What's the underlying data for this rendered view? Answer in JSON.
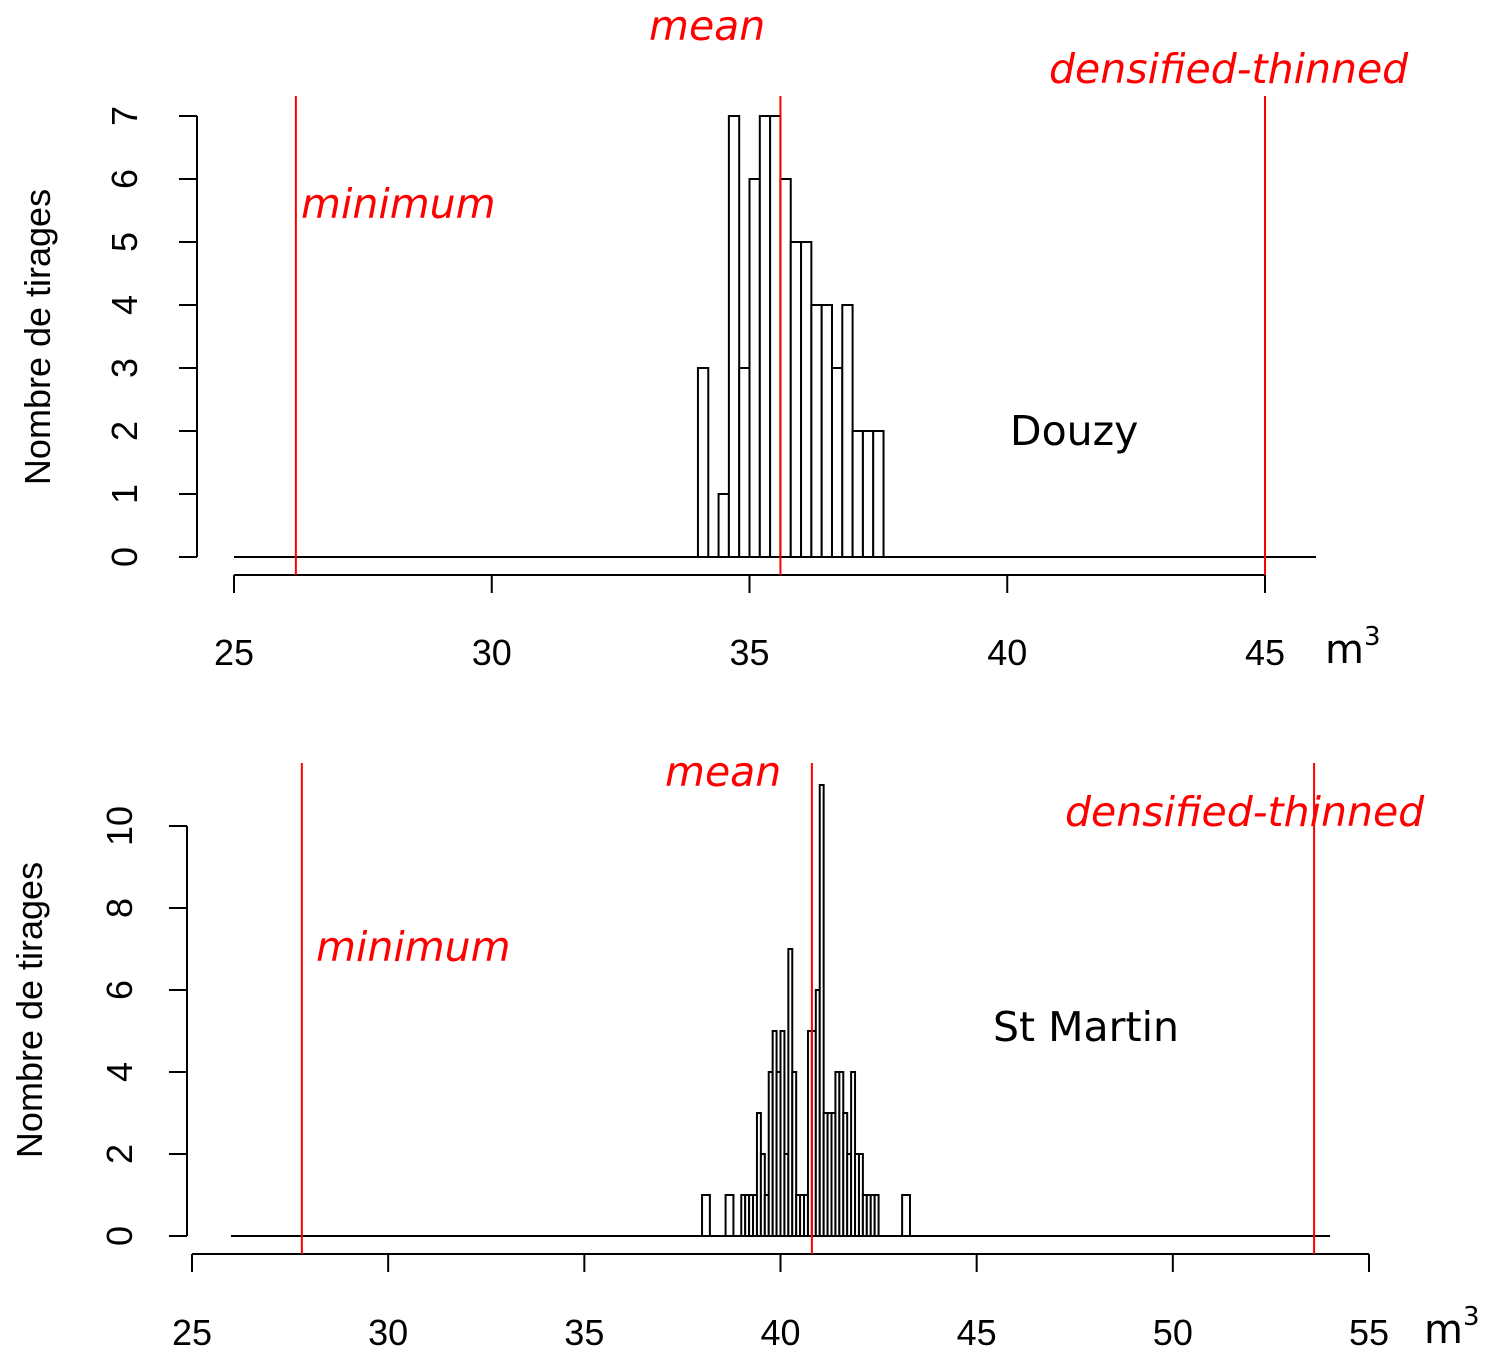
{
  "chart_data": [
    {
      "type": "bar",
      "subtype": "histogram",
      "site": "Douzy",
      "ylabel": "Nombre de tirages",
      "unit": "m",
      "unit_superscript": "3",
      "xlim": [
        25,
        46
      ],
      "ylim": [
        0,
        7
      ],
      "xticks": [
        25,
        30,
        35,
        40,
        45
      ],
      "yticks": [
        0,
        1,
        2,
        3,
        4,
        5,
        6,
        7
      ],
      "bins": [
        {
          "x0": 34.0,
          "x1": 34.2,
          "count": 3
        },
        {
          "x0": 34.2,
          "x1": 34.4,
          "count": 0
        },
        {
          "x0": 34.4,
          "x1": 34.6,
          "count": 1
        },
        {
          "x0": 34.6,
          "x1": 34.8,
          "count": 7
        },
        {
          "x0": 34.8,
          "x1": 35.0,
          "count": 3
        },
        {
          "x0": 35.0,
          "x1": 35.2,
          "count": 6
        },
        {
          "x0": 35.2,
          "x1": 35.4,
          "count": 7
        },
        {
          "x0": 35.4,
          "x1": 35.6,
          "count": 7
        },
        {
          "x0": 35.6,
          "x1": 35.8,
          "count": 6
        },
        {
          "x0": 35.8,
          "x1": 36.0,
          "count": 5
        },
        {
          "x0": 36.0,
          "x1": 36.2,
          "count": 5
        },
        {
          "x0": 36.2,
          "x1": 36.4,
          "count": 4
        },
        {
          "x0": 36.4,
          "x1": 36.6,
          "count": 4
        },
        {
          "x0": 36.6,
          "x1": 36.8,
          "count": 3
        },
        {
          "x0": 36.8,
          "x1": 37.0,
          "count": 4
        },
        {
          "x0": 37.0,
          "x1": 37.2,
          "count": 2
        },
        {
          "x0": 37.2,
          "x1": 37.4,
          "count": 2
        },
        {
          "x0": 37.4,
          "x1": 37.6,
          "count": 2
        }
      ],
      "reference_lines": [
        {
          "name": "minimum",
          "x": 26.2
        },
        {
          "name": "mean",
          "x": 35.6
        },
        {
          "name": "densified-thinned",
          "x": 45.0
        }
      ],
      "line_color": "#ff0000"
    },
    {
      "type": "bar",
      "subtype": "histogram",
      "site": "St Martin",
      "ylabel": "Nombre de tirages",
      "unit": "m",
      "unit_superscript": "3",
      "xlim": [
        25,
        55
      ],
      "ylim": [
        0,
        11
      ],
      "xticks": [
        25,
        30,
        35,
        40,
        45,
        50,
        55
      ],
      "yticks": [
        0,
        2,
        4,
        6,
        8,
        10
      ],
      "bins": [
        {
          "x0": 38.0,
          "x1": 38.2,
          "count": 1
        },
        {
          "x0": 38.6,
          "x1": 38.8,
          "count": 1
        },
        {
          "x0": 39.0,
          "x1": 39.1,
          "count": 1
        },
        {
          "x0": 39.1,
          "x1": 39.2,
          "count": 1
        },
        {
          "x0": 39.2,
          "x1": 39.3,
          "count": 1
        },
        {
          "x0": 39.3,
          "x1": 39.4,
          "count": 1
        },
        {
          "x0": 39.4,
          "x1": 39.5,
          "count": 3
        },
        {
          "x0": 39.5,
          "x1": 39.6,
          "count": 2
        },
        {
          "x0": 39.6,
          "x1": 39.7,
          "count": 1
        },
        {
          "x0": 39.7,
          "x1": 39.8,
          "count": 4
        },
        {
          "x0": 39.8,
          "x1": 39.9,
          "count": 5
        },
        {
          "x0": 39.9,
          "x1": 40.0,
          "count": 4
        },
        {
          "x0": 40.0,
          "x1": 40.1,
          "count": 5
        },
        {
          "x0": 40.1,
          "x1": 40.2,
          "count": 2
        },
        {
          "x0": 40.2,
          "x1": 40.3,
          "count": 7
        },
        {
          "x0": 40.3,
          "x1": 40.4,
          "count": 4
        },
        {
          "x0": 40.4,
          "x1": 40.5,
          "count": 1
        },
        {
          "x0": 40.5,
          "x1": 40.6,
          "count": 1
        },
        {
          "x0": 40.6,
          "x1": 40.7,
          "count": 1
        },
        {
          "x0": 40.7,
          "x1": 40.8,
          "count": 5
        },
        {
          "x0": 40.8,
          "x1": 40.9,
          "count": 5
        },
        {
          "x0": 40.9,
          "x1": 41.0,
          "count": 6
        },
        {
          "x0": 41.0,
          "x1": 41.1,
          "count": 11
        },
        {
          "x0": 41.1,
          "x1": 41.2,
          "count": 3
        },
        {
          "x0": 41.2,
          "x1": 41.3,
          "count": 3
        },
        {
          "x0": 41.3,
          "x1": 41.4,
          "count": 3
        },
        {
          "x0": 41.4,
          "x1": 41.5,
          "count": 4
        },
        {
          "x0": 41.5,
          "x1": 41.6,
          "count": 4
        },
        {
          "x0": 41.6,
          "x1": 41.7,
          "count": 3
        },
        {
          "x0": 41.7,
          "x1": 41.8,
          "count": 2
        },
        {
          "x0": 41.8,
          "x1": 41.9,
          "count": 4
        },
        {
          "x0": 41.9,
          "x1": 42.0,
          "count": 2
        },
        {
          "x0": 42.0,
          "x1": 42.1,
          "count": 2
        },
        {
          "x0": 42.1,
          "x1": 42.2,
          "count": 1
        },
        {
          "x0": 42.2,
          "x1": 42.3,
          "count": 1
        },
        {
          "x0": 42.3,
          "x1": 42.4,
          "count": 1
        },
        {
          "x0": 42.4,
          "x1": 42.5,
          "count": 1
        },
        {
          "x0": 43.1,
          "x1": 43.3,
          "count": 1
        }
      ],
      "reference_lines": [
        {
          "name": "minimum",
          "x": 27.8
        },
        {
          "name": "mean",
          "x": 40.8
        },
        {
          "name": "densified-thinned",
          "x": 53.6
        }
      ],
      "line_color": "#ff0000"
    }
  ]
}
